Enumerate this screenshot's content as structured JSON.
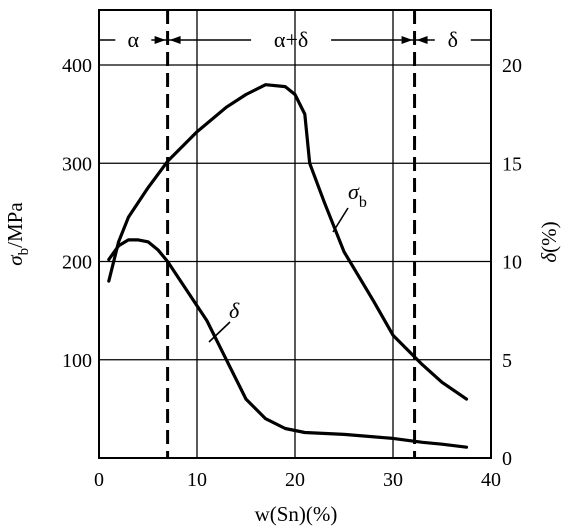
{
  "chart_data": {
    "type": "line",
    "x": {
      "label": "w(Sn)(%)",
      "min": 0,
      "max": 40,
      "ticks": [
        0,
        10,
        20,
        30,
        40
      ],
      "grid": [
        10,
        20,
        30
      ]
    },
    "y_left": {
      "label_main": "σ",
      "label_sub": "b",
      "label_unit": "/MPa",
      "min": 0,
      "max": 400,
      "ticks": [
        100,
        200,
        300,
        400
      ]
    },
    "y_right": {
      "label_main": "δ",
      "label_unit": "(%)",
      "min": 0,
      "max": 20,
      "ticks": [
        0,
        5,
        10,
        15,
        20
      ]
    },
    "grid": true,
    "phase_boundaries": [
      7,
      32.2
    ],
    "regions": [
      {
        "label": "α",
        "from": 0,
        "to": 7
      },
      {
        "label": "α+δ",
        "from": 7,
        "to": 32.2
      },
      {
        "label": "δ",
        "from": 32.2,
        "to": 40
      }
    ],
    "series": [
      {
        "name": "σb",
        "label_main": "σ",
        "label_sub": "b",
        "axis": "left",
        "points": [
          [
            1,
            180
          ],
          [
            2,
            220
          ],
          [
            3,
            245
          ],
          [
            5,
            275
          ],
          [
            7,
            302
          ],
          [
            10,
            332
          ],
          [
            13,
            357
          ],
          [
            15,
            370
          ],
          [
            17,
            380
          ],
          [
            19,
            378
          ],
          [
            20,
            370
          ],
          [
            21,
            350
          ],
          [
            21.5,
            300
          ],
          [
            23,
            260
          ],
          [
            25,
            210
          ],
          [
            28,
            160
          ],
          [
            30,
            125
          ],
          [
            33,
            95
          ],
          [
            35,
            77
          ],
          [
            37.5,
            60
          ]
        ]
      },
      {
        "name": "δ",
        "label_main": "δ",
        "axis": "right",
        "points": [
          [
            1,
            10.1
          ],
          [
            2,
            10.8
          ],
          [
            3,
            11.1
          ],
          [
            4,
            11.1
          ],
          [
            5,
            11
          ],
          [
            6,
            10.6
          ],
          [
            7,
            10
          ],
          [
            9,
            8.5
          ],
          [
            11,
            7
          ],
          [
            13,
            5
          ],
          [
            15,
            3
          ],
          [
            17,
            2
          ],
          [
            19,
            1.5
          ],
          [
            21,
            1.3
          ],
          [
            25,
            1.2
          ],
          [
            30,
            1
          ],
          [
            33,
            0.8
          ],
          [
            35,
            0.7
          ],
          [
            37.5,
            0.55
          ]
        ]
      }
    ]
  }
}
